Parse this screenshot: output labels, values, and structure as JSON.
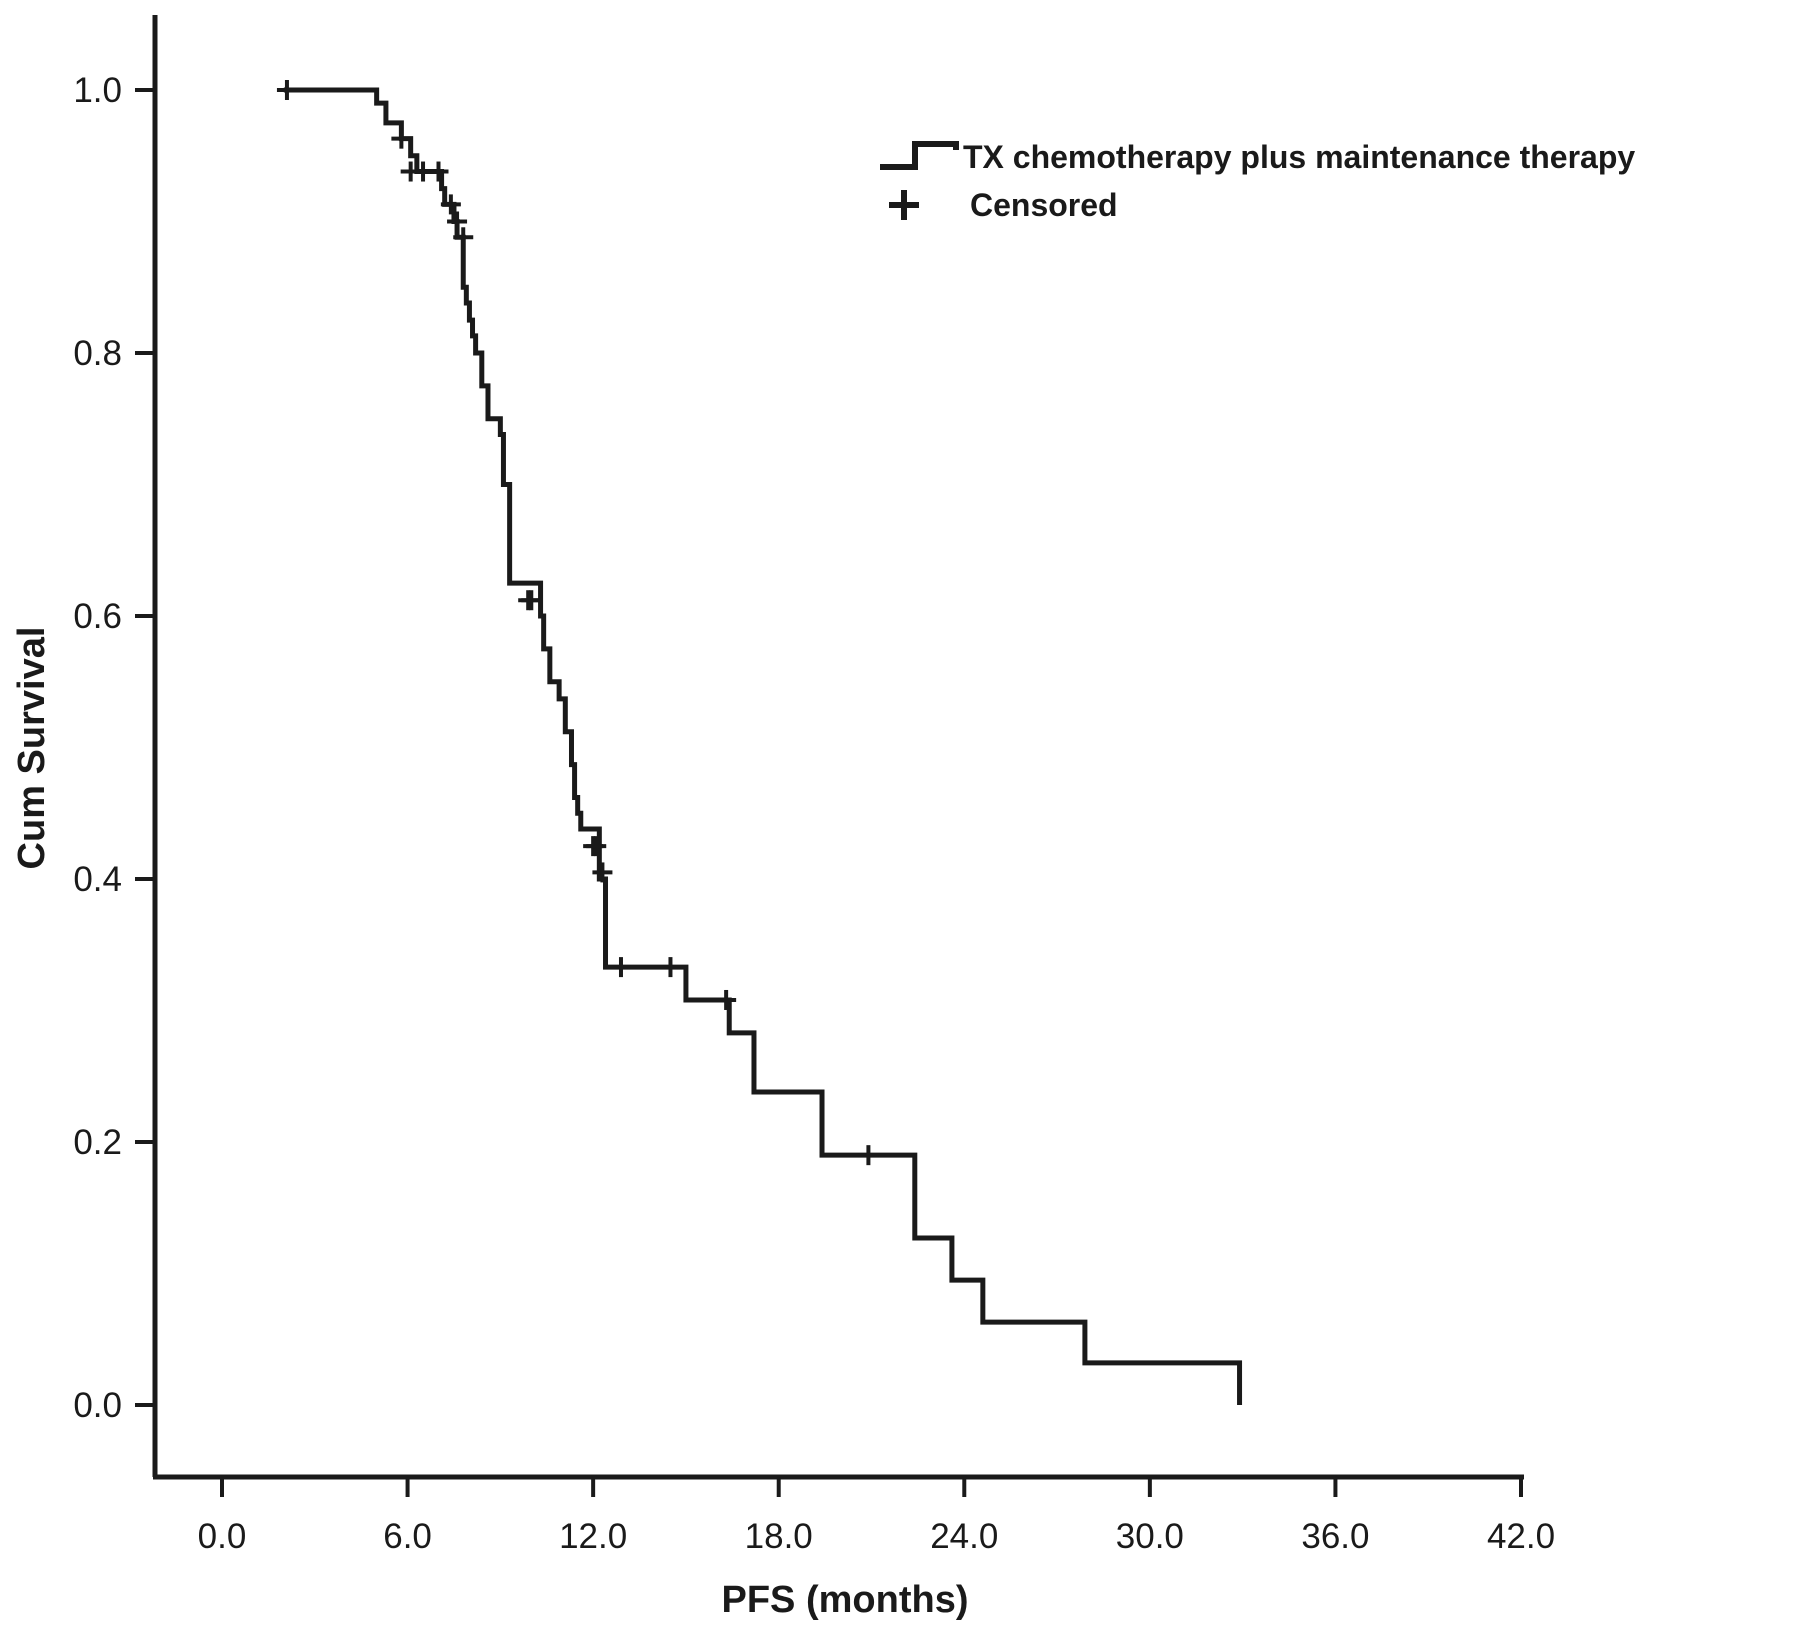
{
  "chart_data": {
    "type": "line",
    "title": "",
    "xlabel": "PFS (months)",
    "ylabel": "Cum Survival",
    "xlim": [
      0,
      42
    ],
    "ylim": [
      0,
      1
    ],
    "x_ticks": [
      "0.0",
      "6.0",
      "12.0",
      "18.0",
      "24.0",
      "30.0",
      "36.0",
      "42.0"
    ],
    "y_ticks": [
      "0.0",
      "0.2",
      "0.4",
      "0.6",
      "0.8",
      "1.0"
    ],
    "grid": false,
    "legend_position": "top-right",
    "legend": {
      "series_label": "TX  chemotherapy plus maintenance therapy",
      "censored_label": "Censored"
    },
    "series": [
      {
        "name": "TX  chemotherapy plus maintenance therapy",
        "step": "post",
        "x": [
          2.0,
          4.7,
          5.0,
          5.3,
          5.8,
          6.1,
          6.3,
          7.1,
          7.2,
          7.5,
          7.6,
          7.8,
          7.9,
          8.0,
          8.1,
          8.2,
          8.4,
          8.6,
          9.0,
          9.1,
          9.3,
          10.3,
          10.4,
          10.6,
          10.9,
          11.1,
          11.3,
          11.4,
          11.5,
          11.6,
          12.2,
          12.4,
          15.0,
          16.4,
          17.2,
          19.4,
          22.4,
          23.6,
          24.6,
          27.9,
          32.9
        ],
        "y": [
          1.0,
          1.0,
          0.99,
          0.975,
          0.963,
          0.95,
          0.938,
          0.925,
          0.913,
          0.9,
          0.888,
          0.85,
          0.838,
          0.825,
          0.813,
          0.8,
          0.775,
          0.75,
          0.738,
          0.7,
          0.625,
          0.6,
          0.575,
          0.55,
          0.537,
          0.512,
          0.487,
          0.462,
          0.45,
          0.438,
          0.4,
          0.333,
          0.308,
          0.283,
          0.238,
          0.19,
          0.127,
          0.095,
          0.063,
          0.032,
          0.0
        ]
      }
    ],
    "censored": {
      "x": [
        2.1,
        5.8,
        6.1,
        6.5,
        7.0,
        7.4,
        7.6,
        7.8,
        9.9,
        10.0,
        12.0,
        12.1,
        12.3,
        12.9,
        14.5,
        16.3,
        20.9
      ],
      "y": [
        1.0,
        0.963,
        0.938,
        0.938,
        0.938,
        0.913,
        0.9,
        0.888,
        0.612,
        0.612,
        0.425,
        0.425,
        0.405,
        0.333,
        0.333,
        0.308,
        0.19
      ]
    }
  }
}
